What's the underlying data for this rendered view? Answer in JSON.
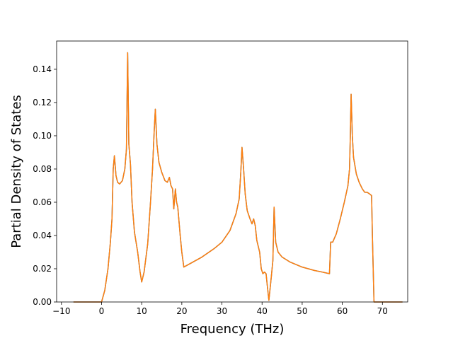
{
  "chart_data": {
    "type": "line",
    "title": "",
    "xlabel": "Frequency (THz)",
    "ylabel": "Partial Density of States",
    "xlim": [
      -11.2,
      76.3
    ],
    "ylim": [
      0.0,
      0.157
    ],
    "xticks": [
      -10,
      0,
      10,
      20,
      30,
      40,
      50,
      60,
      70
    ],
    "xtick_labels": [
      "−10",
      "0",
      "10",
      "20",
      "30",
      "40",
      "50",
      "60",
      "70"
    ],
    "yticks": [
      0.0,
      0.02,
      0.04,
      0.06,
      0.08,
      0.1,
      0.12,
      0.14
    ],
    "ytick_labels": [
      "0.00",
      "0.02",
      "0.04",
      "0.06",
      "0.08",
      "0.10",
      "0.12",
      "0.14"
    ],
    "grid": false,
    "series": [
      {
        "color": "#1f77b4",
        "points": [
          [
            -7.0,
            0.0
          ],
          [
            0.0,
            0.0
          ],
          [
            0.8,
            0.007
          ],
          [
            1.6,
            0.02
          ],
          [
            2.2,
            0.036
          ],
          [
            2.6,
            0.05
          ],
          [
            2.9,
            0.08
          ],
          [
            3.2,
            0.088
          ],
          [
            3.6,
            0.076
          ],
          [
            4.0,
            0.072
          ],
          [
            4.5,
            0.071
          ],
          [
            5.2,
            0.073
          ],
          [
            5.8,
            0.08
          ],
          [
            6.2,
            0.092
          ],
          [
            6.5,
            0.15
          ],
          [
            6.8,
            0.095
          ],
          [
            7.2,
            0.083
          ],
          [
            7.6,
            0.06
          ],
          [
            8.2,
            0.042
          ],
          [
            9.0,
            0.03
          ],
          [
            9.6,
            0.018
          ],
          [
            10.0,
            0.012
          ],
          [
            10.6,
            0.018
          ],
          [
            11.5,
            0.035
          ],
          [
            12.2,
            0.06
          ],
          [
            12.7,
            0.08
          ],
          [
            13.1,
            0.102
          ],
          [
            13.4,
            0.116
          ],
          [
            13.8,
            0.095
          ],
          [
            14.3,
            0.084
          ],
          [
            15.0,
            0.078
          ],
          [
            15.8,
            0.073
          ],
          [
            16.4,
            0.072
          ],
          [
            16.9,
            0.075
          ],
          [
            17.3,
            0.07
          ],
          [
            17.7,
            0.068
          ],
          [
            18.0,
            0.056
          ],
          [
            18.4,
            0.068
          ],
          [
            18.7,
            0.06
          ],
          [
            19.0,
            0.057
          ],
          [
            19.6,
            0.04
          ],
          [
            20.0,
            0.03
          ],
          [
            20.5,
            0.021
          ],
          [
            22.0,
            0.023
          ],
          [
            25.0,
            0.027
          ],
          [
            28.0,
            0.032
          ],
          [
            30.0,
            0.036
          ],
          [
            32.0,
            0.043
          ],
          [
            33.5,
            0.053
          ],
          [
            34.3,
            0.062
          ],
          [
            34.7,
            0.078
          ],
          [
            35.0,
            0.093
          ],
          [
            35.4,
            0.08
          ],
          [
            35.8,
            0.065
          ],
          [
            36.3,
            0.055
          ],
          [
            37.0,
            0.05
          ],
          [
            37.5,
            0.047
          ],
          [
            37.9,
            0.05
          ],
          [
            38.3,
            0.046
          ],
          [
            38.7,
            0.037
          ],
          [
            39.4,
            0.03
          ],
          [
            39.8,
            0.02
          ],
          [
            40.2,
            0.017
          ],
          [
            40.6,
            0.018
          ],
          [
            41.0,
            0.017
          ],
          [
            41.3,
            0.01
          ],
          [
            41.7,
            0.001
          ],
          [
            42.3,
            0.015
          ],
          [
            42.7,
            0.025
          ],
          [
            43.0,
            0.057
          ],
          [
            43.4,
            0.036
          ],
          [
            44.0,
            0.03
          ],
          [
            45.0,
            0.027
          ],
          [
            47.0,
            0.024
          ],
          [
            50.0,
            0.021
          ],
          [
            53.0,
            0.019
          ],
          [
            55.0,
            0.018
          ],
          [
            56.8,
            0.017
          ],
          [
            57.1,
            0.036
          ],
          [
            57.6,
            0.036
          ],
          [
            58.5,
            0.041
          ],
          [
            59.5,
            0.05
          ],
          [
            60.5,
            0.06
          ],
          [
            61.4,
            0.07
          ],
          [
            61.8,
            0.08
          ],
          [
            62.0,
            0.1
          ],
          [
            62.2,
            0.125
          ],
          [
            62.5,
            0.1
          ],
          [
            62.8,
            0.087
          ],
          [
            63.5,
            0.077
          ],
          [
            64.2,
            0.072
          ],
          [
            65.0,
            0.068
          ],
          [
            65.6,
            0.066
          ],
          [
            66.2,
            0.066
          ],
          [
            66.8,
            0.065
          ],
          [
            67.3,
            0.064
          ],
          [
            67.5,
            0.04
          ],
          [
            67.9,
            0.0
          ],
          [
            75.0,
            0.0
          ]
        ]
      },
      {
        "color": "#ff7f0e",
        "points": [
          [
            -7.0,
            0.0
          ],
          [
            0.0,
            0.0
          ],
          [
            0.8,
            0.007
          ],
          [
            1.6,
            0.02
          ],
          [
            2.2,
            0.036
          ],
          [
            2.6,
            0.05
          ],
          [
            2.9,
            0.08
          ],
          [
            3.2,
            0.088
          ],
          [
            3.6,
            0.076
          ],
          [
            4.0,
            0.072
          ],
          [
            4.5,
            0.071
          ],
          [
            5.2,
            0.073
          ],
          [
            5.8,
            0.08
          ],
          [
            6.2,
            0.092
          ],
          [
            6.5,
            0.15
          ],
          [
            6.8,
            0.095
          ],
          [
            7.2,
            0.083
          ],
          [
            7.6,
            0.06
          ],
          [
            8.2,
            0.042
          ],
          [
            9.0,
            0.03
          ],
          [
            9.6,
            0.018
          ],
          [
            10.0,
            0.012
          ],
          [
            10.6,
            0.018
          ],
          [
            11.5,
            0.035
          ],
          [
            12.2,
            0.06
          ],
          [
            12.7,
            0.08
          ],
          [
            13.1,
            0.102
          ],
          [
            13.4,
            0.116
          ],
          [
            13.8,
            0.095
          ],
          [
            14.3,
            0.084
          ],
          [
            15.0,
            0.078
          ],
          [
            15.8,
            0.073
          ],
          [
            16.4,
            0.072
          ],
          [
            16.9,
            0.075
          ],
          [
            17.3,
            0.07
          ],
          [
            17.7,
            0.068
          ],
          [
            18.0,
            0.056
          ],
          [
            18.4,
            0.068
          ],
          [
            18.7,
            0.06
          ],
          [
            19.0,
            0.057
          ],
          [
            19.6,
            0.04
          ],
          [
            20.0,
            0.03
          ],
          [
            20.5,
            0.021
          ],
          [
            22.0,
            0.023
          ],
          [
            25.0,
            0.027
          ],
          [
            28.0,
            0.032
          ],
          [
            30.0,
            0.036
          ],
          [
            32.0,
            0.043
          ],
          [
            33.5,
            0.053
          ],
          [
            34.3,
            0.062
          ],
          [
            34.7,
            0.078
          ],
          [
            35.0,
            0.093
          ],
          [
            35.4,
            0.08
          ],
          [
            35.8,
            0.065
          ],
          [
            36.3,
            0.055
          ],
          [
            37.0,
            0.05
          ],
          [
            37.5,
            0.047
          ],
          [
            37.9,
            0.05
          ],
          [
            38.3,
            0.046
          ],
          [
            38.7,
            0.037
          ],
          [
            39.4,
            0.03
          ],
          [
            39.8,
            0.02
          ],
          [
            40.2,
            0.017
          ],
          [
            40.6,
            0.018
          ],
          [
            41.0,
            0.017
          ],
          [
            41.3,
            0.01
          ],
          [
            41.7,
            0.001
          ],
          [
            42.3,
            0.015
          ],
          [
            42.7,
            0.025
          ],
          [
            43.0,
            0.057
          ],
          [
            43.4,
            0.036
          ],
          [
            44.0,
            0.03
          ],
          [
            45.0,
            0.027
          ],
          [
            47.0,
            0.024
          ],
          [
            50.0,
            0.021
          ],
          [
            53.0,
            0.019
          ],
          [
            55.0,
            0.018
          ],
          [
            56.8,
            0.017
          ],
          [
            57.1,
            0.036
          ],
          [
            57.6,
            0.036
          ],
          [
            58.5,
            0.041
          ],
          [
            59.5,
            0.05
          ],
          [
            60.5,
            0.06
          ],
          [
            61.4,
            0.07
          ],
          [
            61.8,
            0.08
          ],
          [
            62.0,
            0.1
          ],
          [
            62.2,
            0.125
          ],
          [
            62.5,
            0.1
          ],
          [
            62.8,
            0.087
          ],
          [
            63.5,
            0.077
          ],
          [
            64.2,
            0.072
          ],
          [
            65.0,
            0.068
          ],
          [
            65.6,
            0.066
          ],
          [
            66.2,
            0.066
          ],
          [
            66.8,
            0.065
          ],
          [
            67.3,
            0.064
          ],
          [
            67.5,
            0.04
          ],
          [
            67.9,
            0.0
          ],
          [
            75.0,
            0.0
          ]
        ]
      }
    ]
  }
}
